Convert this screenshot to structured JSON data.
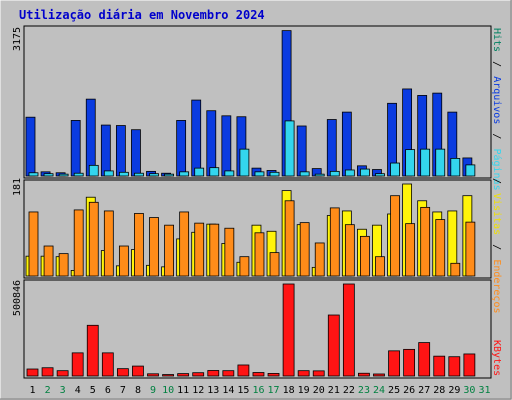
{
  "title": "Utilização diária em Novembro 2024",
  "chart_data": [
    {
      "type": "bar",
      "categories": [
        "1",
        "2",
        "3",
        "4",
        "5",
        "6",
        "7",
        "8",
        "9",
        "10",
        "11",
        "12",
        "13",
        "14",
        "15",
        "16",
        "17",
        "18",
        "19",
        "20",
        "21",
        "22",
        "23",
        "24",
        "25",
        "26",
        "27",
        "28",
        "29",
        "30",
        "31"
      ],
      "weekend_categories": [
        "2",
        "3",
        "9",
        "10",
        "16",
        "17",
        "23",
        "24",
        "30",
        "31"
      ],
      "ytick": "3175",
      "ylim": [
        0,
        3175
      ],
      "series": [
        {
          "name": "Hits",
          "color": "#0a3be0",
          "values": [
            1270,
            90,
            70,
            1200,
            1660,
            1100,
            1090,
            1000,
            100,
            60,
            1200,
            1640,
            1410,
            1300,
            1280,
            170,
            120,
            3140,
            1080,
            160,
            1220,
            1380,
            220,
            140,
            1570,
            1880,
            1740,
            1790,
            1380,
            390,
            0
          ]
        },
        {
          "name": "Arquivos",
          "color": "#33d6ee",
          "values": [
            70,
            50,
            40,
            60,
            230,
            110,
            80,
            60,
            50,
            40,
            90,
            170,
            180,
            110,
            580,
            90,
            80,
            1190,
            90,
            40,
            100,
            130,
            150,
            50,
            280,
            570,
            580,
            580,
            380,
            240,
            0
          ]
        }
      ]
    },
    {
      "type": "bar",
      "categories": [
        "1",
        "2",
        "3",
        "4",
        "5",
        "6",
        "7",
        "8",
        "9",
        "10",
        "11",
        "12",
        "13",
        "14",
        "15",
        "16",
        "17",
        "18",
        "19",
        "20",
        "21",
        "22",
        "23",
        "24",
        "25",
        "26",
        "27",
        "28",
        "29",
        "30",
        "31"
      ],
      "ytick": "181",
      "ylim": [
        0,
        181
      ],
      "series": [
        {
          "name": "Páginas",
          "color": "#fff40a",
          "values": [
            39,
            39,
            38,
            11,
            155,
            50,
            20,
            52,
            21,
            18,
            73,
            86,
            102,
            64,
            27,
            100,
            88,
            168,
            101,
            17,
            119,
            128,
            92,
            100,
            122,
            181,
            148,
            126,
            128,
            158,
            0
          ]
        },
        {
          "name": "Visitas",
          "color": "#ff8c19",
          "values": [
            126,
            59,
            44,
            130,
            145,
            128,
            59,
            123,
            115,
            100,
            126,
            104,
            102,
            94,
            38,
            85,
            46,
            148,
            105,
            65,
            134,
            101,
            78,
            38,
            158,
            103,
            135,
            111,
            25,
            106,
            0
          ]
        }
      ]
    },
    {
      "type": "bar",
      "categories": [
        "1",
        "2",
        "3",
        "4",
        "5",
        "6",
        "7",
        "8",
        "9",
        "10",
        "11",
        "12",
        "13",
        "14",
        "15",
        "16",
        "17",
        "18",
        "19",
        "20",
        "21",
        "22",
        "23",
        "24",
        "25",
        "26",
        "27",
        "28",
        "29",
        "30",
        "31"
      ],
      "ytick": "500846",
      "ylim": [
        0,
        500846
      ],
      "series": [
        {
          "name": "KBytes",
          "color": "#ff1414",
          "values": [
            38000,
            45000,
            29000,
            126000,
            276000,
            126000,
            40000,
            54000,
            12000,
            8000,
            13000,
            18000,
            30000,
            29000,
            60000,
            19000,
            14000,
            500846,
            29000,
            28000,
            332000,
            500846,
            15000,
            11000,
            137000,
            145000,
            182000,
            108000,
            105000,
            120000,
            0
          ]
        }
      ]
    }
  ],
  "right_labels": {
    "hits": "Hits",
    "arquivos": "Arquivos",
    "paginas": "Páginas",
    "visitas": "Visitas",
    "enderecos": "Endereços",
    "kbytes": "KBytes",
    "sep": "/"
  },
  "colors": {
    "background": "#c0c0c0",
    "title": "#0000cc",
    "hits": "#0a3be0",
    "arquivos": "#33d6ee",
    "paginas": "#33d6ee",
    "visitas": "#fff40a",
    "enderecos": "#ff8c19",
    "kbytes": "#ff1414",
    "hits_label": "#008060",
    "weekend_day": "#008040"
  }
}
